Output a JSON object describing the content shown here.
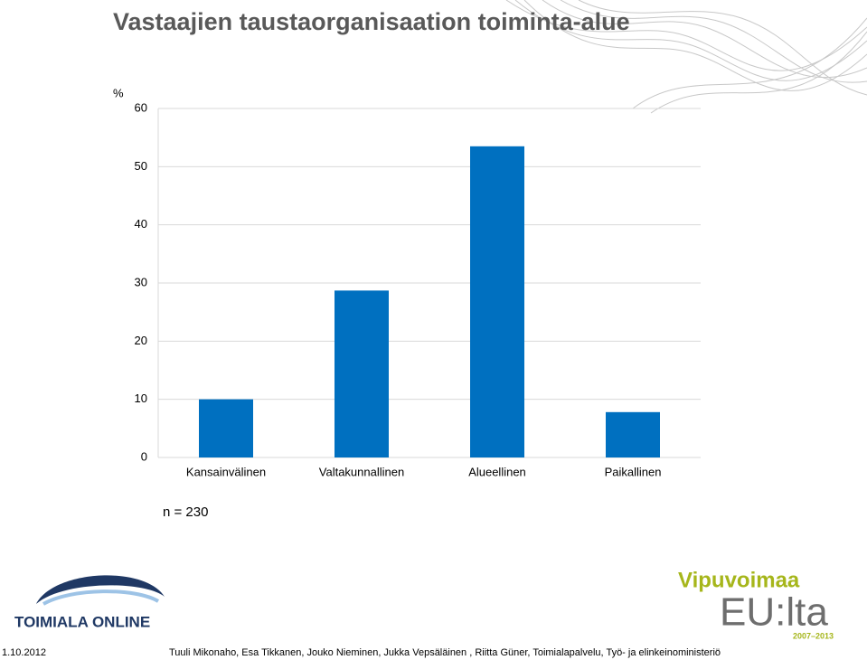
{
  "chart_data": {
    "type": "bar",
    "title": "Vastaajien taustaorganisaation toiminta-alue",
    "y_label": "%",
    "annotation": "n = 230",
    "categories": [
      "Kansainvälinen",
      "Valtakunnallinen",
      "Alueellinen",
      "Paikallinen"
    ],
    "values": [
      10,
      28.7,
      53.5,
      7.8
    ],
    "color": "#0070c0",
    "ylim": [
      0,
      60
    ],
    "yticks": [
      0,
      10,
      20,
      30,
      40,
      50,
      60
    ],
    "grid": true
  },
  "footer": {
    "date": "1.10.2012",
    "authors": "Tuuli Mikonaho, Esa Tikkanen, Jouko Nieminen, Jukka Vepsäläinen , Riitta Güner, Toimialapalvelu, Työ- ja elinkeinoministeriö"
  },
  "logos": {
    "left": "TOIMIALA ONLINE",
    "right_top": "Vipuvoimaa",
    "right_main": "EU:lta",
    "right_years": "2007–2013"
  }
}
